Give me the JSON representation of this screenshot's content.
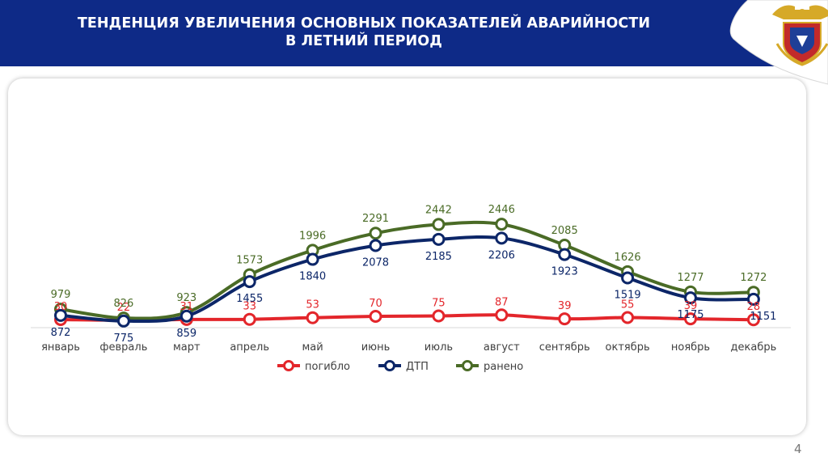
{
  "header": {
    "title_line1": "ТЕНДЕНЦИЯ УВЕЛИЧЕНИЯ ОСНОВНЫХ ПОКАЗАТЕЛЕЙ АВАРИЙНОСТИ",
    "title_line2": "В ЛЕТНИЙ ПЕРИОД",
    "emblem": "police-emblem-icon"
  },
  "page_number": "4",
  "colors": {
    "header_bg": "#0e2a87",
    "pogiblo": "#e3262b",
    "dtp": "#0c2668",
    "raneno": "#4a6b26"
  },
  "chart_data": {
    "type": "line",
    "categories": [
      "январь",
      "февраль",
      "март",
      "апрель",
      "май",
      "июнь",
      "июль",
      "август",
      "сентябрь",
      "октябрь",
      "ноябрь",
      "декабрь"
    ],
    "series": [
      {
        "name": "погибло",
        "color": "#e3262b",
        "values": [
          30,
          22,
          31,
          33,
          53,
          70,
          75,
          87,
          39,
          55,
          39,
          28
        ]
      },
      {
        "name": "ДТП",
        "color": "#0c2668",
        "values": [
          872,
          775,
          859,
          1455,
          1840,
          2078,
          2185,
          2206,
          1923,
          1519,
          1175,
          1151
        ]
      },
      {
        "name": "ранено",
        "color": "#4a6b26",
        "values": [
          979,
          826,
          923,
          1573,
          1996,
          2291,
          2442,
          2446,
          2085,
          1626,
          1277,
          1272
        ]
      }
    ],
    "title": "",
    "xlabel": "",
    "ylabel": "",
    "legend": "bottom",
    "grid": false
  }
}
